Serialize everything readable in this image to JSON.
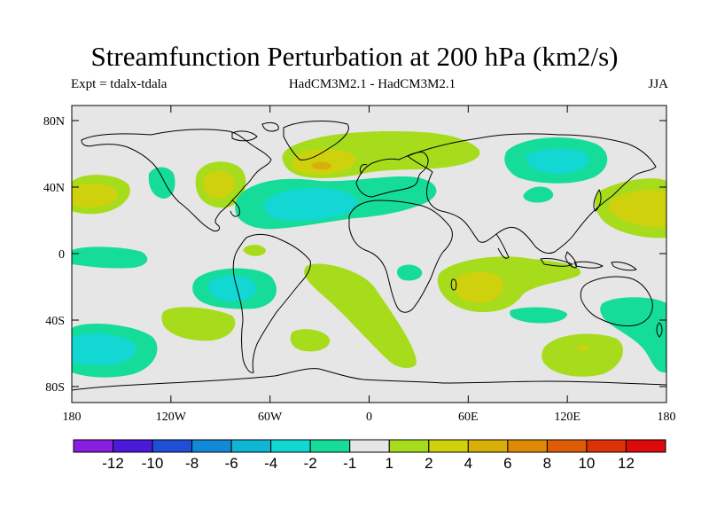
{
  "title": "Streamfunction Perturbation at 200 hPa (km2/s)",
  "subtitle_left": "Expt = tdalx-tdala",
  "subtitle_center": "HadCM3M2.1 - HadCM3M2.1",
  "subtitle_right": "JJA",
  "axes": {
    "y_ticks": [
      "80N",
      "40N",
      "0",
      "40S",
      "80S"
    ],
    "x_ticks": [
      "180",
      "120W",
      "60W",
      "0",
      "60E",
      "120E",
      "180"
    ]
  },
  "colorbar": {
    "labels": [
      "-12",
      "-10",
      "-8",
      "-6",
      "-4",
      "-2",
      "-1",
      "1",
      "2",
      "4",
      "6",
      "8",
      "10",
      "12"
    ],
    "colors": [
      "#8a1ee0",
      "#4b19d9",
      "#1f4fd6",
      "#1189d6",
      "#10b6d6",
      "#12d7d3",
      "#16dc9a",
      "#e6e6e6",
      "#a7dc1c",
      "#cfd10c",
      "#d9b00a",
      "#de8a07",
      "#de5c05",
      "#dc3206",
      "#dc0a0a"
    ]
  },
  "colors": {
    "background": "#e6e6e6",
    "neg_weak": "#16dc9a",
    "neg_mid": "#12d7d3",
    "pos_weak": "#a7dc1c",
    "pos_mid": "#cfd10c",
    "pos_strong": "#d9b00a"
  }
}
